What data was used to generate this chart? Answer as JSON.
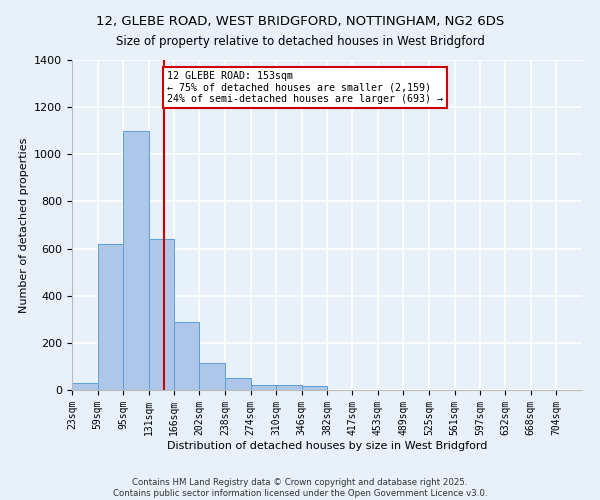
{
  "title": "12, GLEBE ROAD, WEST BRIDGFORD, NOTTINGHAM, NG2 6DS",
  "subtitle": "Size of property relative to detached houses in West Bridgford",
  "xlabel": "Distribution of detached houses by size in West Bridgford",
  "ylabel": "Number of detached properties",
  "bar_edges": [
    23,
    59,
    95,
    131,
    166,
    202,
    238,
    274,
    310,
    346,
    382,
    417,
    453,
    489,
    525,
    561,
    597,
    632,
    668,
    704,
    740
  ],
  "bar_heights": [
    30,
    620,
    1100,
    640,
    290,
    115,
    50,
    20,
    20,
    15,
    0,
    0,
    0,
    0,
    0,
    0,
    0,
    0,
    0,
    0
  ],
  "bar_color": "#aec6e8",
  "bar_edge_color": "#5a9fd4",
  "background_color": "#e8f0fa",
  "grid_color": "#ffffff",
  "red_line_x": 153,
  "annotation_text": "12 GLEBE ROAD: 153sqm\n← 75% of detached houses are smaller (2,159)\n24% of semi-detached houses are larger (693) →",
  "annotation_box_color": "#ffffff",
  "annotation_box_edge": "#cc0000",
  "footnote1": "Contains HM Land Registry data © Crown copyright and database right 2025.",
  "footnote2": "Contains public sector information licensed under the Open Government Licence v3.0.",
  "ylim": [
    0,
    1400
  ],
  "yticks": [
    0,
    200,
    400,
    600,
    800,
    1000,
    1200,
    1400
  ]
}
